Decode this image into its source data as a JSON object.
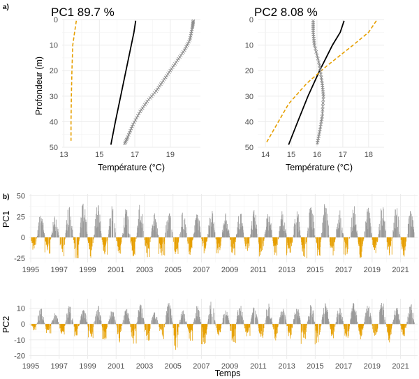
{
  "panel_labels": [
    "a)",
    "b)"
  ],
  "chart_data": [
    {
      "type": "line",
      "title": "PC1 89.7 %",
      "xlabel": "Température (°C)",
      "ylabel": "Profondeur (m)",
      "xlim": [
        12.9,
        20.7
      ],
      "ylim": [
        0,
        50
      ],
      "y_reversed": true,
      "xticks": [
        13,
        15,
        17,
        19
      ],
      "yticks": [
        0,
        10,
        20,
        30,
        40,
        50
      ],
      "series": [
        {
          "style": "solid",
          "color": "#000000",
          "points": [
            [
              17.05,
              0.5
            ],
            [
              16.95,
              5
            ],
            [
              16.8,
              10
            ],
            [
              16.5,
              20
            ],
            [
              16.2,
              30
            ],
            [
              15.9,
              40
            ],
            [
              15.65,
              49
            ]
          ]
        },
        {
          "style": "dashed",
          "color": "#E69F00",
          "points": [
            [
              13.7,
              0.5
            ],
            [
              13.6,
              5
            ],
            [
              13.5,
              10
            ],
            [
              13.45,
              20
            ],
            [
              13.42,
              30
            ],
            [
              13.4,
              40
            ],
            [
              13.4,
              47.5
            ]
          ]
        },
        {
          "style": "cross",
          "color": "#8c8c8c",
          "points": [
            [
              20.3,
              0.5
            ],
            [
              20.25,
              3
            ],
            [
              20.1,
              8
            ],
            [
              19.8,
              12
            ],
            [
              19.4,
              16
            ],
            [
              19.0,
              20
            ],
            [
              18.6,
              24
            ],
            [
              18.2,
              28
            ],
            [
              17.7,
              32
            ],
            [
              17.3,
              36
            ],
            [
              16.9,
              41
            ],
            [
              16.6,
              46
            ],
            [
              16.4,
              49
            ]
          ]
        }
      ]
    },
    {
      "type": "line",
      "title": "PC2 8.08 %",
      "xlabel": "Température (°C)",
      "xlim": [
        13.7,
        18.6
      ],
      "ylim": [
        0,
        50
      ],
      "y_reversed": true,
      "xticks": [
        14,
        15,
        16,
        17,
        18
      ],
      "yticks": [
        0,
        10,
        20,
        30,
        40,
        50
      ],
      "series": [
        {
          "style": "solid",
          "color": "#000000",
          "points": [
            [
              17.05,
              0.5
            ],
            [
              16.9,
              5
            ],
            [
              16.6,
              10
            ],
            [
              16.1,
              20
            ],
            [
              15.65,
              30
            ],
            [
              15.25,
              40
            ],
            [
              14.9,
              49
            ]
          ]
        },
        {
          "style": "dashed",
          "color": "#E69F00",
          "points": [
            [
              18.3,
              0.5
            ],
            [
              18.0,
              5
            ],
            [
              17.4,
              10
            ],
            [
              16.4,
              18
            ],
            [
              15.6,
              25
            ],
            [
              14.9,
              33
            ],
            [
              14.5,
              40
            ],
            [
              14.05,
              48
            ]
          ]
        },
        {
          "style": "cross",
          "color": "#8c8c8c",
          "points": [
            [
              15.85,
              0.5
            ],
            [
              15.85,
              5
            ],
            [
              15.9,
              10
            ],
            [
              16.1,
              18
            ],
            [
              16.2,
              25
            ],
            [
              16.25,
              30
            ],
            [
              16.2,
              38
            ],
            [
              16.1,
              44
            ],
            [
              16.0,
              49
            ]
          ]
        }
      ]
    },
    {
      "type": "bar",
      "ylabel": "PC1",
      "xlim": [
        1994.9,
        2022.2
      ],
      "ylim": [
        -30,
        52
      ],
      "xticks": [
        "1995",
        "1997",
        "1999",
        "2001",
        "2003",
        "2005",
        "2007",
        "2009",
        "2011",
        "2013",
        "2015",
        "2017",
        "2019",
        "2021"
      ],
      "yticks": [
        -25,
        0,
        25,
        50
      ],
      "positive_color": "#999999",
      "negative_color": "#E69F00",
      "season_peak_max": [
        30,
        28,
        41,
        47,
        41,
        38,
        35,
        44,
        29,
        34,
        31,
        30,
        36,
        31,
        33,
        35,
        33,
        34,
        35,
        39,
        44,
        34,
        39,
        36,
        40,
        39,
        34
      ],
      "season_trough_min": [
        -18,
        -20,
        -24,
        -26,
        -25,
        -22,
        -20,
        -23,
        -24,
        -22,
        -21,
        -22,
        -20,
        -21,
        -23,
        -22,
        -25,
        -22,
        -21,
        -26,
        -23,
        -24,
        -22,
        -25,
        -23,
        -22,
        -24
      ]
    },
    {
      "type": "bar",
      "xlabel": "Temps",
      "ylabel": "PC2",
      "xlim": [
        1994.9,
        2022.2
      ],
      "ylim": [
        -22,
        16
      ],
      "xticks": [
        "1995",
        "1997",
        "1999",
        "2001",
        "2003",
        "2005",
        "2007",
        "2009",
        "2011",
        "2013",
        "2015",
        "2017",
        "2019",
        "2021"
      ],
      "yticks": [
        -20,
        -10,
        0,
        10
      ],
      "positive_color": "#999999",
      "negative_color": "#E69F00",
      "season_peak_max": [
        11,
        7,
        12,
        10,
        13,
        9,
        10,
        13,
        8,
        14,
        9,
        12,
        15,
        10,
        13,
        11,
        14,
        10,
        12,
        13,
        15,
        11,
        14,
        12,
        15,
        11,
        13
      ],
      "season_trough_min": [
        -4,
        -6,
        -7,
        -8,
        -9,
        -10,
        -12,
        -13,
        -18,
        -10,
        -20,
        -11,
        -14,
        -9,
        -12,
        -8,
        -13,
        -11,
        -10,
        -14,
        -12,
        -9,
        -13,
        -10,
        -11,
        -12,
        -9
      ]
    }
  ]
}
